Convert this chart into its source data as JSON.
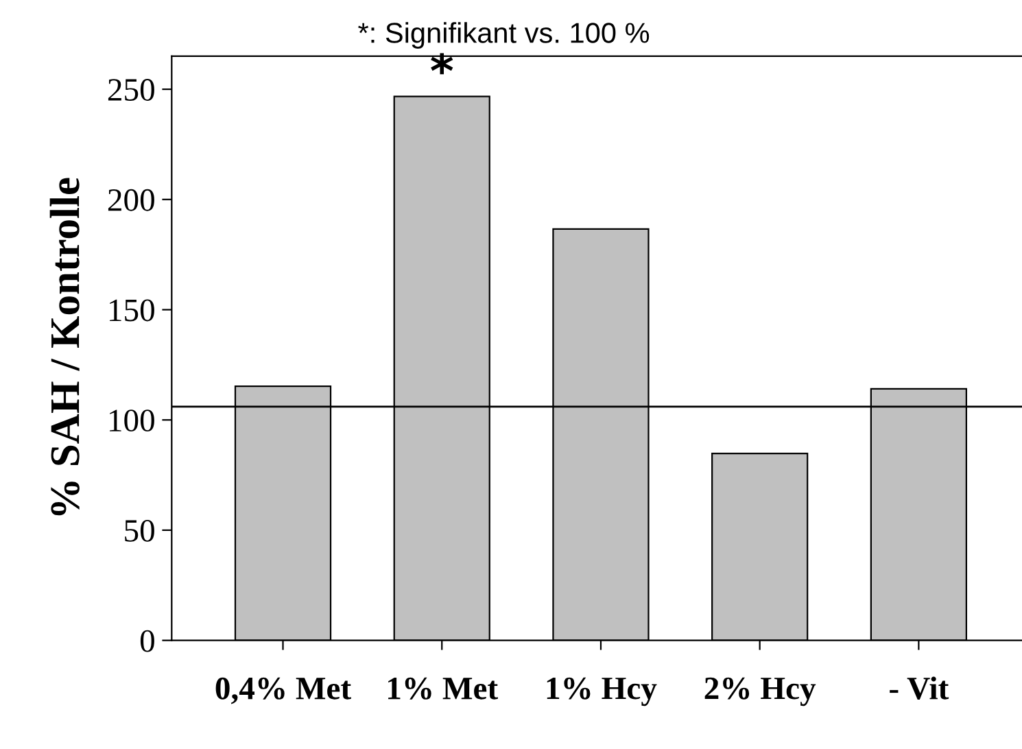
{
  "chart_data": {
    "type": "bar",
    "ylabel": "% SAH / Kontrolle",
    "categories": [
      "0,4% Met",
      "1% Met",
      "1% Hcy",
      "2% Hcy",
      "- Vit"
    ],
    "values": [
      115.3,
      246.7,
      186.6,
      84.8,
      114.1
    ],
    "color": "#c0c0c0",
    "ylim": [
      0,
      265
    ],
    "yticks": [
      0,
      50,
      100,
      150,
      200,
      250
    ],
    "grid": false,
    "ref_lines": [
      {
        "axis": "y",
        "value": 106,
        "color": "#000000"
      }
    ],
    "annotations": [
      "*: Signifikant vs. 100 %",
      {
        "text": "*",
        "x": "1% Met",
        "y": 246.7
      }
    ]
  }
}
